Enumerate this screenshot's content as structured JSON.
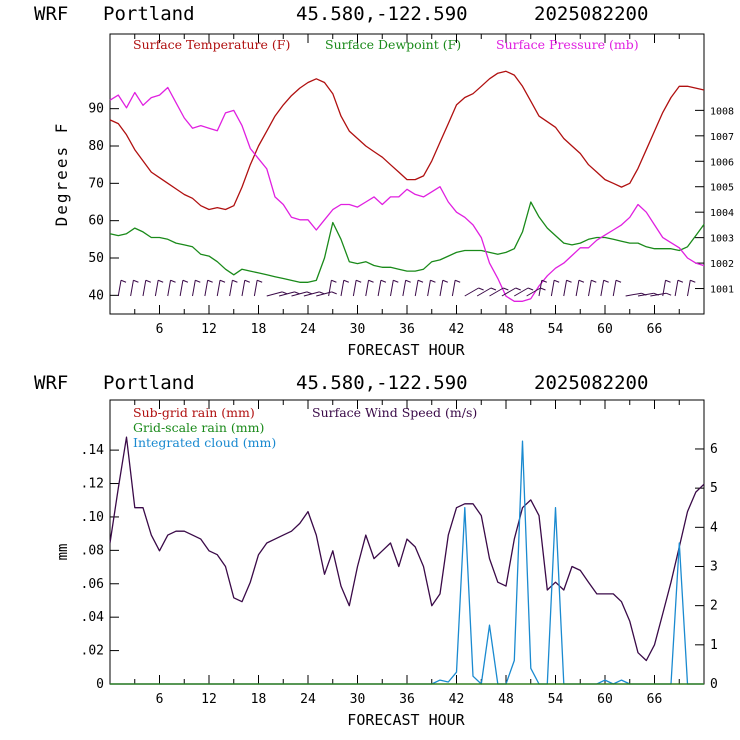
{
  "header": {
    "model": "WRF",
    "location": "Portland",
    "coords": "45.580,-122.590",
    "run": "2025082200"
  },
  "colors": {
    "temperature": "#b01010",
    "dewpoint": "#1a8a1a",
    "pressure": "#e020e0",
    "wind_speed": "#3a0a48",
    "subgrid_rain": "#b01010",
    "gridscale_rain": "#1a8a1a",
    "cloud": "#1a8ad0",
    "barbs": "#3a0a48"
  },
  "chart_data": [
    {
      "type": "line",
      "xlabel": "FORECAST HOUR",
      "ylabel": "Degrees F",
      "xlim": [
        0,
        72
      ],
      "ylim": [
        35,
        110
      ],
      "y2lim": [
        1000,
        1011
      ],
      "xticks": [
        "6",
        "12",
        "18",
        "24",
        "30",
        "36",
        "42",
        "48",
        "54",
        "60",
        "66"
      ],
      "yticks": [
        "40",
        "50",
        "60",
        "70",
        "80",
        "90"
      ],
      "y2ticks": [
        "1001",
        "1002",
        "1003",
        "1004",
        "1005",
        "1006",
        "1007",
        "1008"
      ],
      "legend": [
        "Surface Temperature (F)",
        "Surface Dewpoint (F)",
        "Surface Pressure (mb)"
      ],
      "series": [
        {
          "name": "Surface Temperature (F)",
          "axis": "left",
          "x": [
            0,
            1,
            2,
            3,
            4,
            5,
            6,
            7,
            8,
            9,
            10,
            11,
            12,
            13,
            14,
            15,
            16,
            17,
            18,
            19,
            20,
            21,
            22,
            23,
            24,
            25,
            26,
            27,
            28,
            29,
            30,
            31,
            32,
            33,
            34,
            35,
            36,
            37,
            38,
            39,
            40,
            41,
            42,
            43,
            44,
            45,
            46,
            47,
            48,
            49,
            50,
            51,
            52,
            53,
            54,
            55,
            56,
            57,
            58,
            59,
            60,
            61,
            62,
            63,
            64,
            65,
            66,
            67,
            68,
            69,
            70,
            71,
            72
          ],
          "values": [
            87,
            86,
            83,
            79,
            76,
            73,
            71.5,
            70,
            68.5,
            67,
            66,
            64,
            63,
            63.5,
            63,
            64,
            69,
            75,
            80,
            84,
            88,
            91,
            93.5,
            95.5,
            97,
            98,
            97,
            94,
            88,
            84,
            82,
            80,
            78.5,
            77,
            75,
            73,
            71,
            71,
            72,
            76,
            81,
            86,
            91,
            93,
            94,
            96,
            98,
            99.5,
            100,
            99,
            96,
            92,
            88,
            86.5,
            85,
            82,
            80,
            78,
            75,
            73,
            71,
            70,
            69,
            70,
            74,
            79,
            84,
            89,
            93,
            96,
            96,
            95.5,
            95
          ]
        },
        {
          "name": "Surface Dewpoint (F)",
          "axis": "left",
          "x": [
            0,
            1,
            2,
            3,
            4,
            5,
            6,
            7,
            8,
            9,
            10,
            11,
            12,
            13,
            14,
            15,
            16,
            17,
            18,
            19,
            20,
            21,
            22,
            23,
            24,
            25,
            26,
            27,
            28,
            29,
            30,
            31,
            32,
            33,
            34,
            35,
            36,
            37,
            38,
            39,
            40,
            41,
            42,
            43,
            44,
            45,
            46,
            47,
            48,
            49,
            50,
            51,
            52,
            53,
            54,
            55,
            56,
            57,
            58,
            59,
            60,
            61,
            62,
            63,
            64,
            65,
            66,
            67,
            68,
            69,
            70,
            71,
            72
          ],
          "values": [
            56.5,
            56,
            56.5,
            58,
            57,
            55.5,
            55.5,
            55,
            54,
            53.5,
            53,
            51,
            50.5,
            49,
            47,
            45.5,
            47,
            46.5,
            46,
            45.5,
            45,
            44.5,
            44,
            43.5,
            43.5,
            44,
            50,
            59.5,
            55,
            49,
            48.5,
            49,
            48,
            47.5,
            47.5,
            47,
            46.5,
            46.5,
            47,
            49,
            49.5,
            50.5,
            51.5,
            52,
            52,
            52,
            51.5,
            51,
            51.5,
            52.5,
            57,
            65,
            61,
            58,
            56,
            54,
            53.5,
            54,
            55,
            55.5,
            55.5,
            55,
            54.5,
            54,
            54,
            53,
            52.5,
            52.5,
            52.5,
            52,
            53,
            56,
            59
          ]
        },
        {
          "name": "Surface Pressure (mb)",
          "axis": "right",
          "x": [
            0,
            1,
            2,
            3,
            4,
            5,
            6,
            7,
            8,
            9,
            10,
            11,
            12,
            13,
            14,
            15,
            16,
            17,
            18,
            19,
            20,
            21,
            22,
            23,
            24,
            25,
            26,
            27,
            28,
            29,
            30,
            31,
            32,
            33,
            34,
            35,
            36,
            37,
            38,
            39,
            40,
            41,
            42,
            43,
            44,
            45,
            46,
            47,
            48,
            49,
            50,
            51,
            52,
            53,
            54,
            55,
            56,
            57,
            58,
            59,
            60,
            61,
            62,
            63,
            64,
            65,
            66,
            67,
            68,
            69,
            70,
            71,
            72
          ],
          "values": [
            1008.4,
            1008.6,
            1008.1,
            1008.7,
            1008.2,
            1008.5,
            1008.6,
            1008.9,
            1008.3,
            1007.7,
            1007.3,
            1007.4,
            1007.3,
            1007.2,
            1007.9,
            1008.0,
            1007.4,
            1006.5,
            1006.1,
            1005.7,
            1004.6,
            1004.3,
            1003.8,
            1003.7,
            1003.7,
            1003.3,
            1003.7,
            1004.1,
            1004.3,
            1004.3,
            1004.2,
            1004.4,
            1004.6,
            1004.3,
            1004.6,
            1004.6,
            1004.9,
            1004.7,
            1004.6,
            1004.8,
            1005.0,
            1004.4,
            1004.0,
            1003.8,
            1003.5,
            1003.0,
            1002.0,
            1001.4,
            1000.7,
            1000.5,
            1000.5,
            1000.6,
            1001.1,
            1001.5,
            1001.8,
            1002.0,
            1002.3,
            1002.6,
            1002.6,
            1002.9,
            1003.1,
            1003.3,
            1003.5,
            1003.8,
            1004.3,
            1004.0,
            1003.5,
            1003.0,
            1002.8,
            1002.6,
            1002.2,
            1002.0,
            1001.9
          ]
        }
      ]
    },
    {
      "type": "line",
      "xlabel": "FORECAST HOUR",
      "ylabel": "mm",
      "xlim": [
        0,
        72
      ],
      "ylim": [
        0,
        0.17
      ],
      "y2lim": [
        0,
        7.25
      ],
      "xticks": [
        "6",
        "12",
        "18",
        "24",
        "30",
        "36",
        "42",
        "48",
        "54",
        "60",
        "66"
      ],
      "yticks": [
        "0",
        ".02",
        ".04",
        ".06",
        ".08",
        ".10",
        ".12",
        ".14"
      ],
      "y2ticks": [
        "0",
        "1",
        "2",
        "3",
        "4",
        "5",
        "6"
      ],
      "legend": [
        "Sub-grid rain (mm)",
        "Grid-scale rain (mm)",
        "Integrated cloud (mm)",
        "Surface Wind Speed (m/s)"
      ],
      "series": [
        {
          "name": "Surface Wind Speed (m/s)",
          "axis": "right",
          "x": [
            0,
            1,
            2,
            3,
            4,
            5,
            6,
            7,
            8,
            9,
            10,
            11,
            12,
            13,
            14,
            15,
            16,
            17,
            18,
            19,
            20,
            21,
            22,
            23,
            24,
            25,
            26,
            27,
            28,
            29,
            30,
            31,
            32,
            33,
            34,
            35,
            36,
            37,
            38,
            39,
            40,
            41,
            42,
            43,
            44,
            45,
            46,
            47,
            48,
            49,
            50,
            51,
            52,
            53,
            54,
            55,
            56,
            57,
            58,
            59,
            60,
            61,
            62,
            63,
            64,
            65,
            66,
            67,
            68,
            69,
            70,
            71,
            72
          ],
          "values": [
            3.6,
            5.0,
            6.3,
            4.5,
            4.5,
            3.8,
            3.4,
            3.8,
            3.9,
            3.9,
            3.8,
            3.7,
            3.4,
            3.3,
            3.0,
            2.2,
            2.1,
            2.6,
            3.3,
            3.6,
            3.7,
            3.8,
            3.9,
            4.1,
            4.4,
            3.8,
            2.8,
            3.4,
            2.5,
            2.0,
            3.0,
            3.8,
            3.2,
            3.4,
            3.6,
            3.0,
            3.7,
            3.5,
            3.0,
            2.0,
            2.3,
            3.8,
            4.5,
            4.6,
            4.6,
            4.3,
            3.2,
            2.6,
            2.5,
            3.7,
            4.5,
            4.7,
            4.3,
            2.4,
            2.6,
            2.4,
            3.0,
            2.9,
            2.6,
            2.3,
            2.3,
            2.3,
            2.1,
            1.6,
            0.8,
            0.6,
            1.0,
            1.8,
            2.6,
            3.5,
            4.4,
            4.9,
            5.1
          ]
        },
        {
          "name": "Integrated cloud (mm)",
          "axis": "right",
          "x": [
            0,
            1,
            2,
            3,
            4,
            5,
            6,
            7,
            8,
            9,
            10,
            11,
            12,
            13,
            14,
            15,
            16,
            17,
            18,
            19,
            20,
            21,
            22,
            23,
            24,
            25,
            26,
            27,
            28,
            29,
            30,
            31,
            32,
            33,
            34,
            35,
            36,
            37,
            38,
            39,
            40,
            41,
            42,
            43,
            44,
            45,
            46,
            47,
            48,
            49,
            50,
            51,
            52,
            53,
            54,
            55,
            56,
            57,
            58,
            59,
            60,
            61,
            62,
            63,
            64,
            65,
            66,
            67,
            68,
            69,
            70,
            71,
            72
          ],
          "values": [
            0,
            0,
            0,
            0,
            0,
            0,
            0,
            0,
            0,
            0,
            0,
            0,
            0,
            0,
            0,
            0,
            0,
            0,
            0,
            0,
            0,
            0,
            0,
            0,
            0,
            0,
            0,
            0,
            0,
            0,
            0,
            0,
            0,
            0,
            0,
            0,
            0,
            0,
            0,
            0,
            0.1,
            0.05,
            0.3,
            4.5,
            0.2,
            0,
            1.5,
            0,
            0,
            0.6,
            6.2,
            0.4,
            0,
            0,
            4.5,
            0,
            0,
            0,
            0,
            0,
            0.1,
            0,
            0.1,
            0,
            0,
            0,
            0,
            0,
            0,
            3.6,
            0,
            0,
            0
          ]
        },
        {
          "name": "Sub-grid rain (mm)",
          "axis": "left",
          "x": [
            0,
            72
          ],
          "values": [
            0,
            0
          ]
        },
        {
          "name": "Grid-scale rain (mm)",
          "axis": "left",
          "x": [
            0,
            72
          ],
          "values": [
            0,
            0
          ]
        }
      ]
    }
  ]
}
